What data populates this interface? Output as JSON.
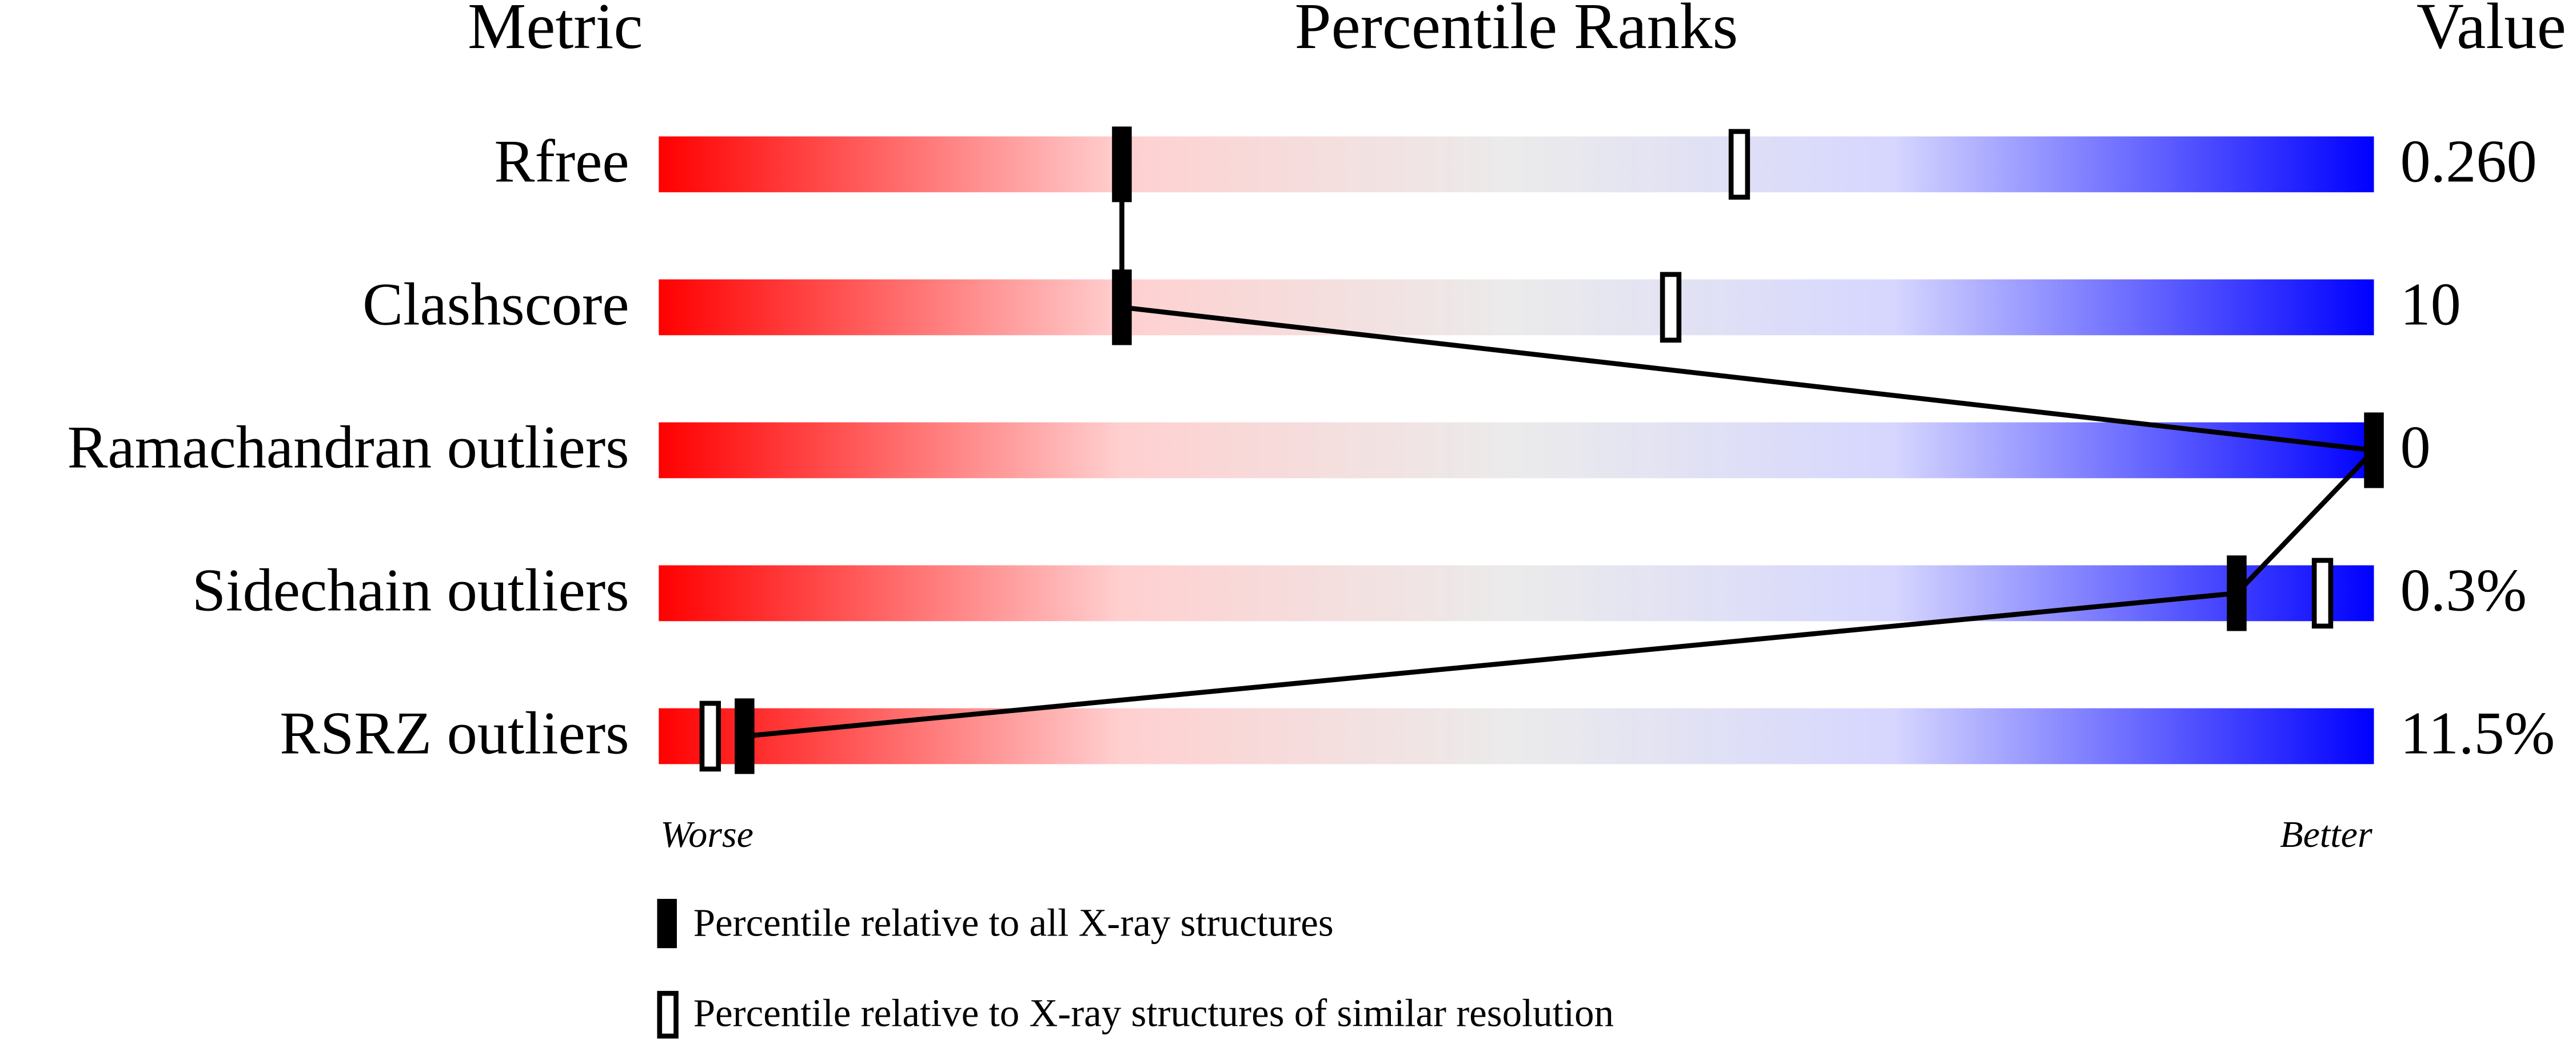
{
  "chart_data": {
    "type": "percentile-slider",
    "headers": [
      "Metric",
      "Percentile Ranks",
      "Value"
    ],
    "categories": [
      "Rfree",
      "Clashscore",
      "Ramachandran outliers",
      "Sidechain outliers",
      "RSRZ outliers"
    ],
    "value_labels": [
      "0.260",
      "10",
      "0",
      "0.3%",
      "11.5%"
    ],
    "xlim": [
      0,
      100
    ],
    "series": [
      {
        "name": "Percentile relative to all X-ray structures",
        "color": "#000000",
        "values": [
          27,
          27,
          100,
          92,
          5
        ]
      },
      {
        "name": "Percentile relative to X-ray structures of similar resolution",
        "color": "#ffffff",
        "values": [
          63,
          59,
          null,
          97,
          3
        ]
      }
    ],
    "worse_label": "Worse",
    "better_label": "Better"
  }
}
